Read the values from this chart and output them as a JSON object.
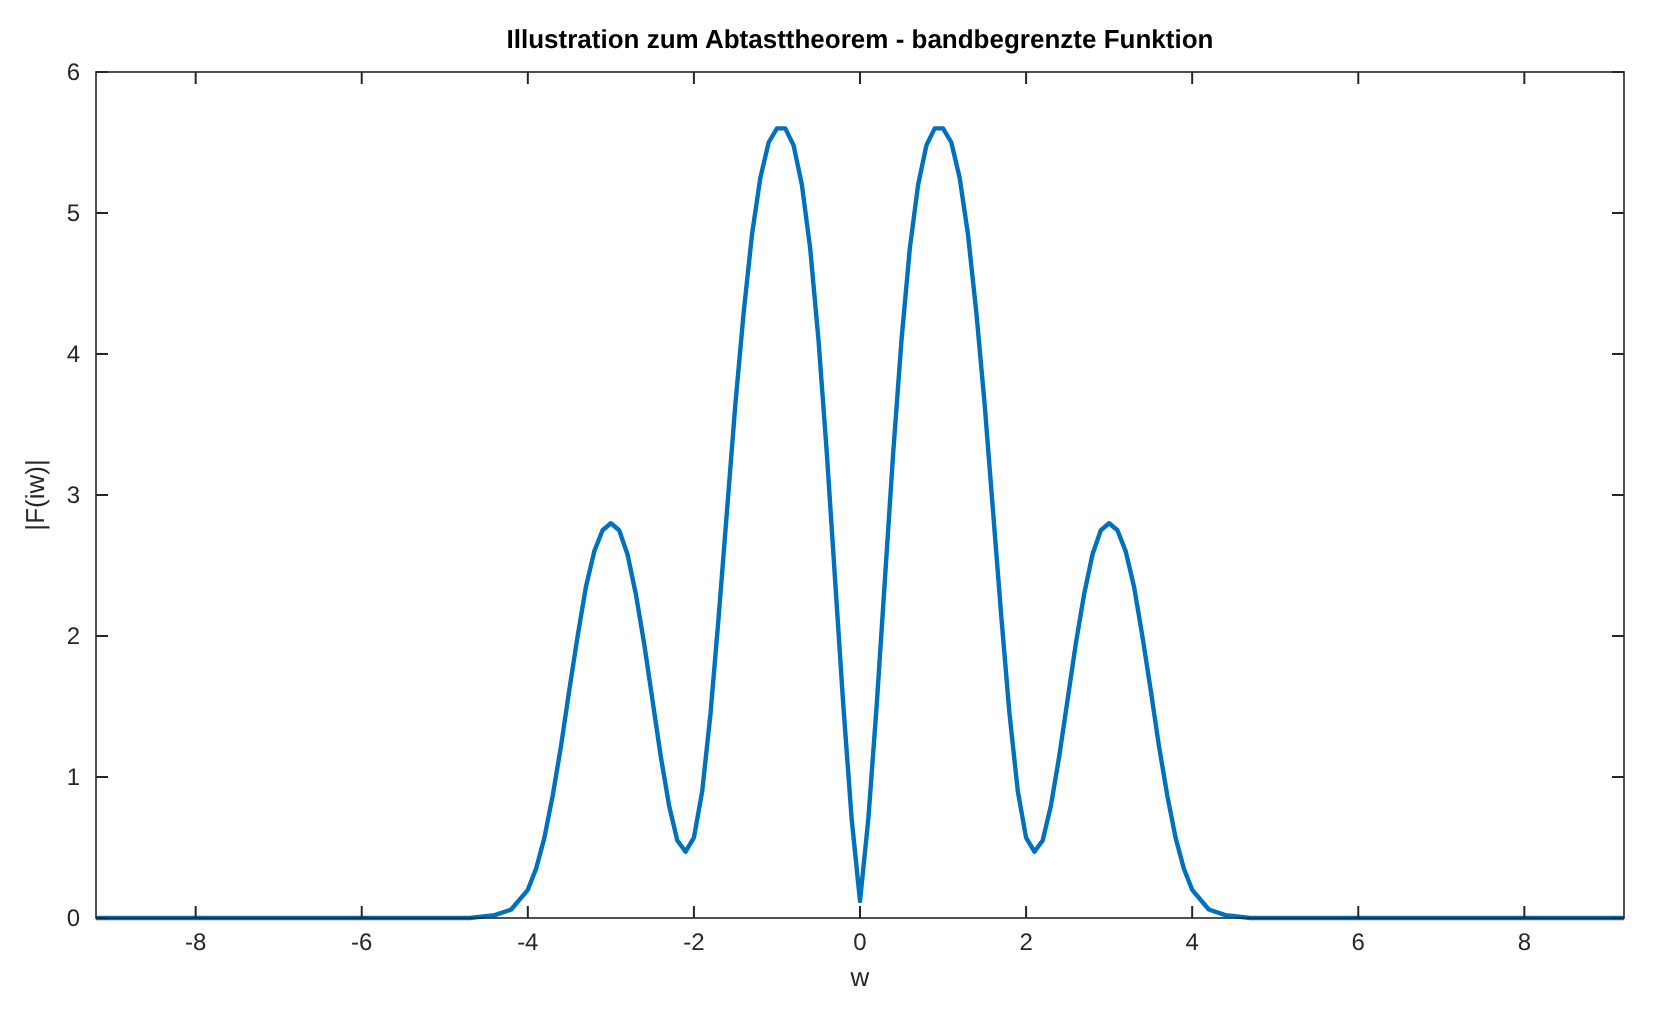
{
  "chart_data": {
    "type": "line",
    "title": "Illustration zum Abtasttheorem - bandbegrenzte Funktion",
    "xlabel": "w",
    "ylabel": "|F(iw)|",
    "x": [
      -9.2,
      -4.7,
      -4.4,
      -4.2,
      -4.0,
      -3.9,
      -3.8,
      -3.7,
      -3.6,
      -3.5,
      -3.4,
      -3.3,
      -3.2,
      -3.1,
      -3.0,
      -2.9,
      -2.8,
      -2.7,
      -2.6,
      -2.5,
      -2.4,
      -2.3,
      -2.2,
      -2.1,
      -2.0,
      -1.9,
      -1.8,
      -1.7,
      -1.6,
      -1.5,
      -1.4,
      -1.3,
      -1.2,
      -1.1,
      -1.0,
      -0.9,
      -0.8,
      -0.7,
      -0.6,
      -0.5,
      -0.4,
      -0.3,
      -0.2,
      -0.1,
      0,
      0.1,
      0.2,
      0.3,
      0.4,
      0.5,
      0.6,
      0.7,
      0.8,
      0.9,
      1.0,
      1.1,
      1.2,
      1.3,
      1.4,
      1.5,
      1.6,
      1.7,
      1.8,
      1.9,
      2.0,
      2.1,
      2.2,
      2.3,
      2.4,
      2.5,
      2.6,
      2.7,
      2.8,
      2.9,
      3.0,
      3.1,
      3.2,
      3.3,
      3.4,
      3.5,
      3.6,
      3.7,
      3.8,
      3.9,
      4.0,
      4.2,
      4.4,
      4.7,
      9.2
    ],
    "series": [
      {
        "color": "#0072bd",
        "values": [
          0,
          0,
          0.02,
          0.06,
          0.2,
          0.35,
          0.57,
          0.87,
          1.22,
          1.62,
          2.0,
          2.35,
          2.6,
          2.75,
          2.8,
          2.75,
          2.58,
          2.3,
          1.95,
          1.55,
          1.15,
          0.8,
          0.55,
          0.47,
          0.57,
          0.9,
          1.45,
          2.15,
          2.9,
          3.65,
          4.3,
          4.85,
          5.25,
          5.5,
          5.6,
          5.6,
          5.48,
          5.2,
          4.75,
          4.1,
          3.3,
          2.4,
          1.5,
          0.7,
          0.12,
          0.7,
          1.5,
          2.4,
          3.3,
          4.1,
          4.75,
          5.2,
          5.48,
          5.6,
          5.6,
          5.5,
          5.25,
          4.85,
          4.3,
          3.65,
          2.9,
          2.15,
          1.45,
          0.9,
          0.57,
          0.47,
          0.55,
          0.8,
          1.15,
          1.55,
          1.95,
          2.3,
          2.58,
          2.75,
          2.8,
          2.75,
          2.6,
          2.35,
          2.0,
          1.62,
          1.22,
          0.87,
          0.57,
          0.35,
          0.2,
          0.06,
          0.02,
          0,
          0
        ]
      }
    ],
    "xlim": [
      -9.2,
      9.2
    ],
    "xticks": [
      -8,
      -6,
      -4,
      -2,
      0,
      2,
      4,
      6,
      8
    ],
    "ylim": [
      0,
      6
    ],
    "yticks": [
      0,
      1,
      2,
      3,
      4,
      5,
      6
    ],
    "marker": "none",
    "line_style": "solid"
  }
}
